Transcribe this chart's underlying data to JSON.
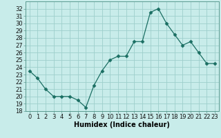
{
  "x": [
    0,
    1,
    2,
    3,
    4,
    5,
    6,
    7,
    8,
    9,
    10,
    11,
    12,
    13,
    14,
    15,
    16,
    17,
    18,
    19,
    20,
    21,
    22,
    23
  ],
  "y": [
    23.5,
    22.5,
    21.0,
    20.0,
    20.0,
    20.0,
    19.5,
    18.5,
    21.5,
    23.5,
    25.0,
    25.5,
    25.5,
    27.5,
    27.5,
    31.5,
    32.0,
    30.0,
    28.5,
    27.0,
    27.5,
    26.0,
    24.5,
    24.5
  ],
  "line_color": "#1a6e62",
  "marker": "D",
  "marker_size": 2.5,
  "bg_color": "#c8ecea",
  "grid_color": "#9ecfcc",
  "xlabel": "Humidex (Indice chaleur)",
  "ylim": [
    18,
    33
  ],
  "xlim": [
    -0.5,
    23.5
  ],
  "yticks": [
    18,
    19,
    20,
    21,
    22,
    23,
    24,
    25,
    26,
    27,
    28,
    29,
    30,
    31,
    32
  ],
  "xticks": [
    0,
    1,
    2,
    3,
    4,
    5,
    6,
    7,
    8,
    9,
    10,
    11,
    12,
    13,
    14,
    15,
    16,
    17,
    18,
    19,
    20,
    21,
    22,
    23
  ],
  "xtick_labels": [
    "0",
    "1",
    "2",
    "3",
    "4",
    "5",
    "6",
    "7",
    "8",
    "9",
    "10",
    "11",
    "12",
    "13",
    "14",
    "15",
    "16",
    "17",
    "18",
    "19",
    "20",
    "21",
    "22",
    "23"
  ],
  "tick_fontsize": 6,
  "xlabel_fontsize": 7
}
